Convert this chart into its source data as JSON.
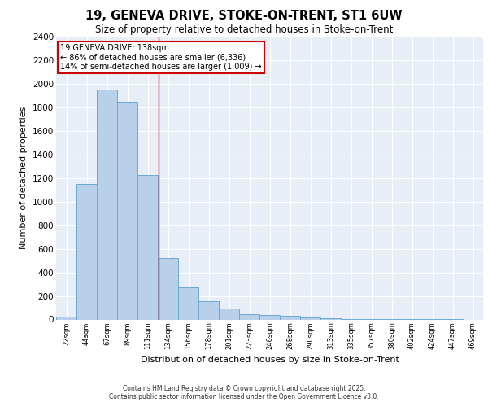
{
  "title1": "19, GENEVA DRIVE, STOKE-ON-TRENT, ST1 6UW",
  "title2": "Size of property relative to detached houses in Stoke-on-Trent",
  "xlabel": "Distribution of detached houses by size in Stoke-on-Trent",
  "ylabel": "Number of detached properties",
  "categories": [
    "22sqm",
    "44sqm",
    "67sqm",
    "89sqm",
    "111sqm",
    "134sqm",
    "156sqm",
    "178sqm",
    "201sqm",
    "223sqm",
    "246sqm",
    "268sqm",
    "290sqm",
    "313sqm",
    "335sqm",
    "357sqm",
    "380sqm",
    "402sqm",
    "424sqm",
    "447sqm",
    "469sqm"
  ],
  "values": [
    25,
    1150,
    1950,
    1850,
    1225,
    520,
    270,
    155,
    90,
    45,
    35,
    30,
    15,
    10,
    5,
    3,
    2,
    2,
    1,
    1,
    0
  ],
  "bar_color": "#b8d0ea",
  "bar_edge_color": "#6aaad4",
  "background_color": "#e8eef8",
  "grid_color": "#ffffff",
  "annotation_title": "19 GENEVA DRIVE: 138sqm",
  "annotation_line1": "← 86% of detached houses are smaller (6,336)",
  "annotation_line2": "14% of semi-detached houses are larger (1,009) →",
  "annotation_box_color": "#ffffff",
  "annotation_box_edge": "#cc0000",
  "footer1": "Contains HM Land Registry data © Crown copyright and database right 2025.",
  "footer2": "Contains public sector information licensed under the Open Government Licence v3.0.",
  "ylim": [
    0,
    2400
  ],
  "yticks": [
    0,
    200,
    400,
    600,
    800,
    1000,
    1200,
    1400,
    1600,
    1800,
    2000,
    2200,
    2400
  ]
}
